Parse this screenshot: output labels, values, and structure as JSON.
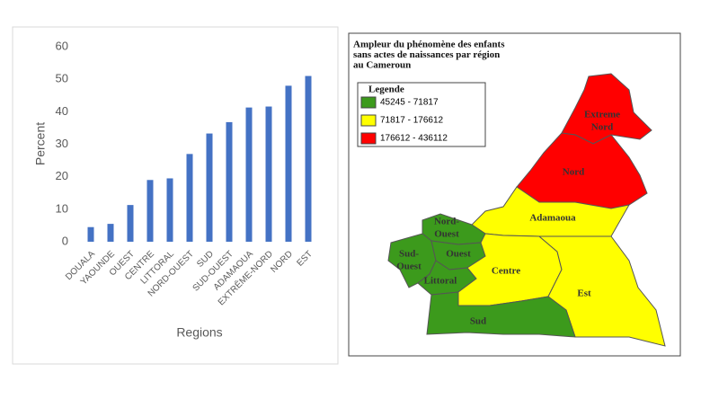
{
  "chart_data": {
    "type": "bar",
    "x_label": "Regions",
    "y_label": "Percent",
    "categories": [
      "DOUALA",
      "YAOUNDE",
      "OUEST",
      "CENTRE",
      "LITTORAL",
      "NORD-OUEST",
      "SUD",
      "SUD-OUEST",
      "ADAMAOUA",
      "EXTRÊME-NORD",
      "NORD",
      "EST"
    ],
    "values": [
      4.5,
      5.5,
      11.3,
      19,
      19.5,
      27,
      33.3,
      36.8,
      41.3,
      41.6,
      48,
      51
    ],
    "color": "#4472c4",
    "ylim": [
      0,
      60
    ],
    "yticks": [
      0,
      10,
      20,
      30,
      40,
      50,
      60
    ],
    "grid": false
  },
  "map": {
    "title": [
      "Ampleur du phénomène des enfants",
      "sans actes de naissances par région",
      "au Cameroun"
    ],
    "legend": {
      "title": "Legende",
      "items": [
        {
          "label": "45245 - 71817",
          "color": "#3c9a1c"
        },
        {
          "label": "71817 - 176612",
          "color": "#ffff00"
        },
        {
          "label": "176612 - 436112",
          "color": "#ff0000"
        }
      ]
    },
    "regions": [
      {
        "label": [
          "Extreme",
          "Nord"
        ],
        "color": "#ff0000"
      },
      {
        "label": [
          "Nord"
        ],
        "color": "#ff0000"
      },
      {
        "label": [
          "Adamaoua"
        ],
        "color": "#ffff00"
      },
      {
        "label": [
          "Nord-",
          "Ouest"
        ],
        "color": "#3c9a1c"
      },
      {
        "label": [
          "Sud-",
          "Ouest"
        ],
        "color": "#3c9a1c"
      },
      {
        "label": [
          "Ouest"
        ],
        "color": "#3c9a1c"
      },
      {
        "label": [
          "Littoral"
        ],
        "color": "#3c9a1c"
      },
      {
        "label": [
          "Centre"
        ],
        "color": "#ffff00"
      },
      {
        "label": [
          "Est"
        ],
        "color": "#ffff00"
      },
      {
        "label": [
          "Sud"
        ],
        "color": "#3c9a1c"
      }
    ]
  }
}
